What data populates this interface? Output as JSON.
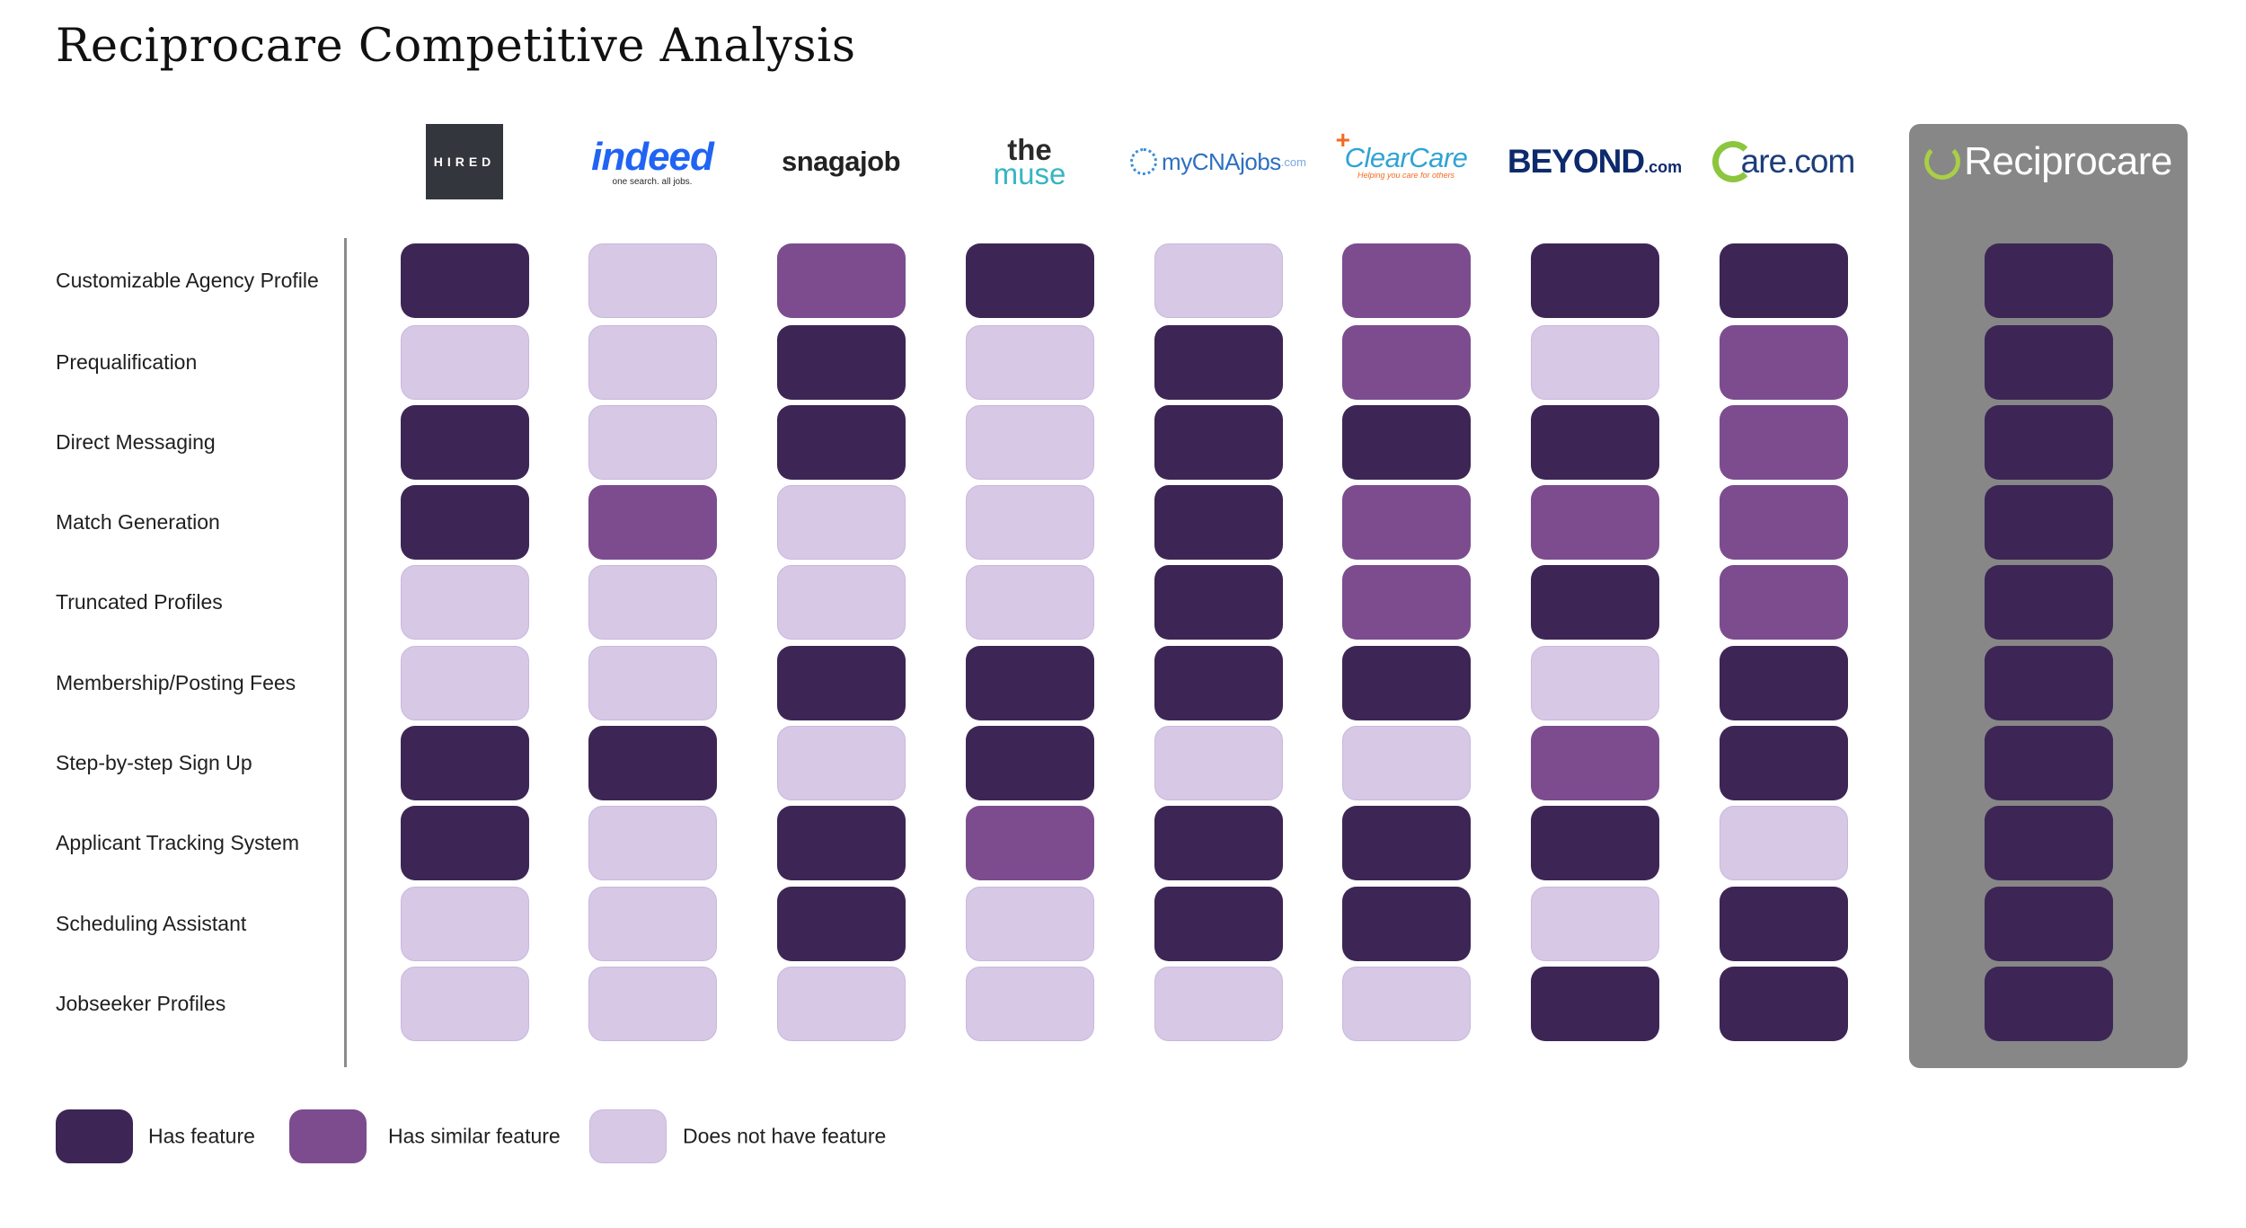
{
  "title": "Reciprocare Competitive Analysis",
  "colors": {
    "has": "#3d2655",
    "similar": "#7c4c8f",
    "none": "#d7c8e6",
    "highlight_panel": "#878787"
  },
  "logos": {
    "hired": {
      "text": "HIRED"
    },
    "indeed": {
      "text": "indeed",
      "tagline": "one search. all jobs."
    },
    "snagajob": {
      "text": "snagajob"
    },
    "themuse": {
      "text_top": "the",
      "text_bottom": "muse"
    },
    "mycnajobs": {
      "text": "myCNAjobs",
      "suffix": ".com"
    },
    "clearcare": {
      "text": "ClearCare",
      "tagline": "Helping you care for others"
    },
    "beyond": {
      "text": "BEYOND",
      "suffix": ".com"
    },
    "carecom": {
      "text": "are.com"
    },
    "reciprocare": {
      "text": "Reciprocare"
    }
  },
  "legend": [
    {
      "key": "has",
      "label": "Has feature"
    },
    {
      "key": "similar",
      "label": "Has similar feature"
    },
    {
      "key": "none",
      "label": "Does not have feature"
    }
  ],
  "chart_data": {
    "type": "table",
    "title": "Reciprocare Competitive Analysis",
    "columns": [
      "Hired",
      "Indeed",
      "Snagajob",
      "The Muse",
      "myCNAjobs",
      "ClearCare",
      "Beyond.com",
      "Care.com",
      "Reciprocare"
    ],
    "rows": [
      {
        "label": "Customizable Agency Profile",
        "values": [
          "has",
          "none",
          "similar",
          "has",
          "none",
          "similar",
          "has",
          "has",
          "has"
        ]
      },
      {
        "label": "Prequalification",
        "values": [
          "none",
          "none",
          "has",
          "none",
          "has",
          "similar",
          "none",
          "similar",
          "has"
        ]
      },
      {
        "label": "Direct Messaging",
        "values": [
          "has",
          "none",
          "has",
          "none",
          "has",
          "has",
          "has",
          "similar",
          "has"
        ]
      },
      {
        "label": "Match Generation",
        "values": [
          "has",
          "similar",
          "none",
          "none",
          "has",
          "similar",
          "similar",
          "similar",
          "has"
        ]
      },
      {
        "label": "Truncated Profiles",
        "values": [
          "none",
          "none",
          "none",
          "none",
          "has",
          "similar",
          "has",
          "similar",
          "has"
        ]
      },
      {
        "label": "Membership/Posting Fees",
        "values": [
          "none",
          "none",
          "has",
          "has",
          "has",
          "has",
          "none",
          "has",
          "has"
        ]
      },
      {
        "label": "Step-by-step Sign Up",
        "values": [
          "has",
          "has",
          "none",
          "has",
          "none",
          "none",
          "similar",
          "has",
          "has"
        ]
      },
      {
        "label": "Applicant Tracking System",
        "values": [
          "has",
          "none",
          "has",
          "similar",
          "has",
          "has",
          "has",
          "none",
          "has"
        ]
      },
      {
        "label": "Scheduling Assistant",
        "values": [
          "none",
          "none",
          "has",
          "none",
          "has",
          "has",
          "none",
          "has",
          "has"
        ]
      },
      {
        "label": "Jobseeker Profiles",
        "values": [
          "none",
          "none",
          "none",
          "none",
          "none",
          "none",
          "has",
          "has",
          "has"
        ]
      }
    ],
    "legend_labels": {
      "has": "Has feature",
      "similar": "Has similar feature",
      "none": "Does not have feature"
    }
  }
}
